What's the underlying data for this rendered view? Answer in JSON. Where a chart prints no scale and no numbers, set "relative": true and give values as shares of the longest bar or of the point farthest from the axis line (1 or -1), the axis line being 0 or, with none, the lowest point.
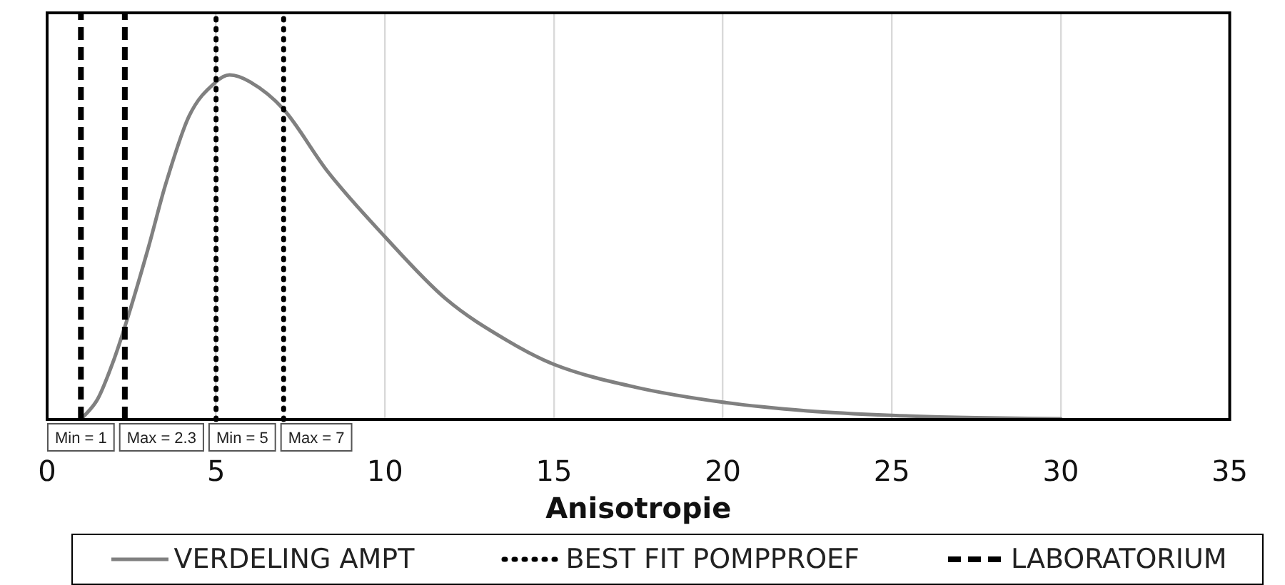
{
  "chart_data": {
    "type": "line",
    "xlabel": "Anisotropie",
    "xlim": [
      0,
      35
    ],
    "xticks": [
      0,
      5,
      10,
      15,
      20,
      25,
      30,
      35
    ],
    "relative": true,
    "grid": "x",
    "legend": "bottom",
    "marker": "none",
    "series": [
      {
        "name": "VERDELING AMPT",
        "color": "#808080",
        "line_style": "solid",
        "x": [
          1,
          1.5,
          2,
          2.4,
          3,
          3.5,
          4.2,
          5,
          5.4,
          6,
          7,
          8.3,
          10,
          11.8,
          13.6,
          15,
          17.4,
          20,
          22.5,
          25,
          27.5,
          30
        ],
        "values": [
          0,
          0.06,
          0.18,
          0.3,
          0.5,
          0.68,
          0.88,
          0.98,
          1,
          0.98,
          0.9,
          0.72,
          0.53,
          0.35,
          0.23,
          0.16,
          0.094,
          0.05,
          0.025,
          0.012,
          0.005,
          0.002
        ]
      },
      {
        "name": "BEST FIT POMPPROEF",
        "color": "#000000",
        "line_style": "dotted"
      },
      {
        "name": "LABORATORIUM",
        "color": "#000000",
        "line_style": "dashed"
      }
    ],
    "ref_lines": [
      {
        "axis": "x",
        "value": 1,
        "label": "Min = 1",
        "color": "#000000",
        "line_style": "dashed"
      },
      {
        "axis": "x",
        "value": 2.3,
        "label": "Max = 2.3",
        "color": "#000000",
        "line_style": "dashed"
      },
      {
        "axis": "x",
        "value": 5,
        "label": "Min = 5",
        "color": "#000000",
        "line_style": "dotted"
      },
      {
        "axis": "x",
        "value": 7,
        "label": "Max = 7",
        "color": "#000000",
        "line_style": "dotted"
      }
    ]
  }
}
